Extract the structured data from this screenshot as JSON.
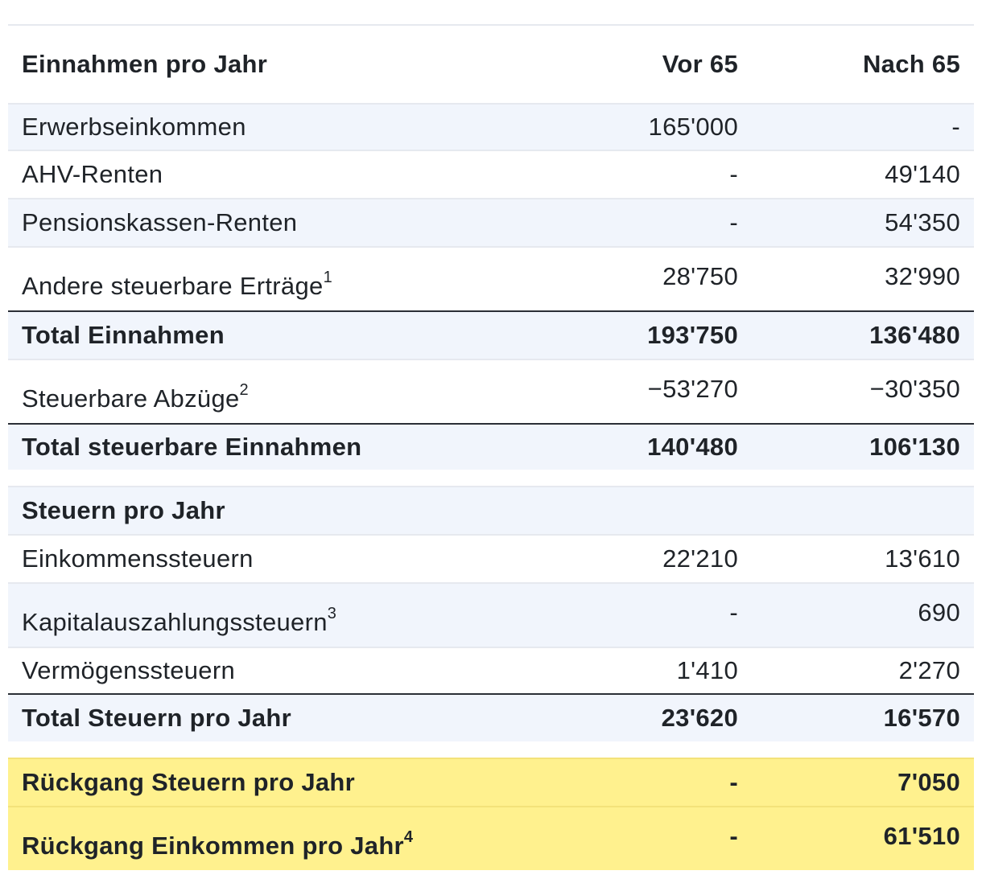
{
  "header": {
    "label": "Einnahmen pro Jahr",
    "col_before": "Vor 65",
    "col_after": "Nach 65"
  },
  "income_rows": [
    {
      "label": "Erwerbseinkommen",
      "before": "165'000",
      "after": "-"
    },
    {
      "label": "AHV-Renten",
      "before": "-",
      "after": "49'140"
    },
    {
      "label": "Pensionskassen-Renten",
      "before": "-",
      "after": "54'350"
    },
    {
      "label": "Andere steuerbare Erträge",
      "sup": "1",
      "before": "28'750",
      "after": "32'990"
    }
  ],
  "total_income": {
    "label": "Total Einnahmen",
    "before": "193'750",
    "after": "136'480"
  },
  "deductions": {
    "label": "Steuerbare Abzüge",
    "sup": "2",
    "before": "−53'270",
    "after": "−30'350"
  },
  "total_taxable": {
    "label": "Total steuerbare Einnahmen",
    "before": "140'480",
    "after": "106'130"
  },
  "taxes_header": {
    "label": "Steuern pro Jahr"
  },
  "tax_rows": [
    {
      "label": "Einkommenssteuern",
      "before": "22'210",
      "after": "13'610"
    },
    {
      "label": "Kapitalauszahlungssteuern",
      "sup": "3",
      "before": "-",
      "after": "690"
    },
    {
      "label": "Vermögenssteuern",
      "before": "1'410",
      "after": "2'270"
    }
  ],
  "total_taxes": {
    "label": "Total Steuern pro Jahr",
    "before": "23'620",
    "after": "16'570"
  },
  "tax_reduction": {
    "label": "Rückgang Steuern pro Jahr",
    "before": "-",
    "after": "7'050"
  },
  "income_reduction": {
    "label": "Rückgang Einkommen pro Jahr",
    "sup": "4",
    "before": "-",
    "after": "61'510"
  },
  "colors": {
    "shade": "#f1f5fc",
    "highlight": "#fff18e",
    "rule": "#2b2f36"
  }
}
